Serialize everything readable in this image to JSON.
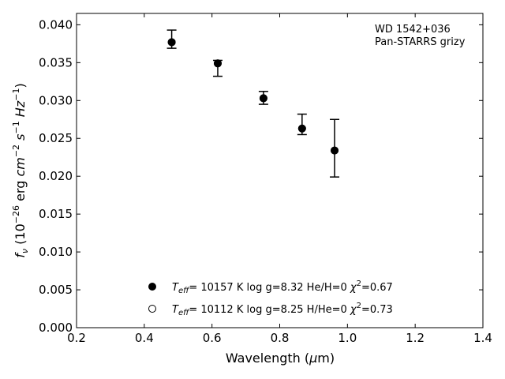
{
  "chart_data": {
    "type": "scatter",
    "annotations": [
      "WD 1542+036",
      "Pan-STARRS grizy"
    ],
    "xlabel": "Wavelength (μm)",
    "ylabel": "fν (10⁻²⁶ erg cm⁻² s⁻¹ Hz⁻¹)",
    "xlim": [
      0.2,
      1.4
    ],
    "ylim": [
      0.0,
      0.0415
    ],
    "xticks": [
      0.2,
      0.4,
      0.6,
      0.8,
      1.0,
      1.2,
      1.4
    ],
    "xtick_labels": [
      "0.2",
      "0.4",
      "0.6",
      "0.8",
      "1.0",
      "1.2",
      "1.4"
    ],
    "yticks": [
      0.0,
      0.005,
      0.01,
      0.015,
      0.02,
      0.025,
      0.03,
      0.035,
      0.04
    ],
    "ytick_labels": [
      "0.000",
      "0.005",
      "0.010",
      "0.015",
      "0.020",
      "0.025",
      "0.030",
      "0.035",
      "0.040"
    ],
    "grid": false,
    "legend_position": "bottom-center",
    "points": [
      {
        "x": 0.481,
        "y": 0.0377,
        "err_low": 0.0008,
        "err_high": 0.0016
      },
      {
        "x": 0.617,
        "y": 0.0349,
        "err_low": 0.0017,
        "err_high": 0.0004
      },
      {
        "x": 0.752,
        "y": 0.0303,
        "err_low": 0.0008,
        "err_high": 0.0009
      },
      {
        "x": 0.866,
        "y": 0.0263,
        "err_low": 0.0008,
        "err_high": 0.0019
      },
      {
        "x": 0.962,
        "y": 0.0234,
        "err_low": 0.0035,
        "err_high": 0.0041
      }
    ],
    "legend": [
      {
        "marker": "filled",
        "teff_value": "= 10157 K  log g=8.32  He/H=0 ",
        "chi2": "=0.67"
      },
      {
        "marker": "open",
        "teff_value": "= 10112 K  log g=8.25  H/He=0 ",
        "chi2": "=0.73"
      }
    ]
  }
}
